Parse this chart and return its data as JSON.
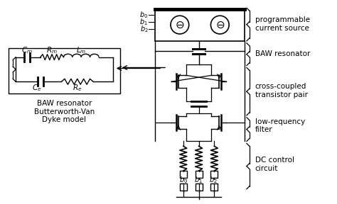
{
  "bg_color": "#ffffff",
  "line_color": "#000000",
  "fig_width": 4.74,
  "fig_height": 2.88,
  "dpi": 100,
  "labels": {
    "programmable_current_source": "programmable\ncurrent source",
    "BAW_resonator": "BAW resonator",
    "cross_coupled": "cross-coupled\ntransistor pair",
    "low_freq": "low-requency\nfilter",
    "dc_control": "DC control\ncircuit",
    "baw_model_title": "BAW resonator\nButterworth-Van\nDyke model",
    "Cm": "$C_m$",
    "Rm": "$R_m$",
    "Lm": "$L_m$",
    "Ce": "$C_e$",
    "Re": "$R_e$",
    "b0_top": "$b_0$",
    "b1_top": "$b_1$",
    "b2_top": "$b_2$",
    "b0_bot": "$b_0$",
    "b1_bot": "$b_1$",
    "b2_bot": "$b_2$"
  }
}
